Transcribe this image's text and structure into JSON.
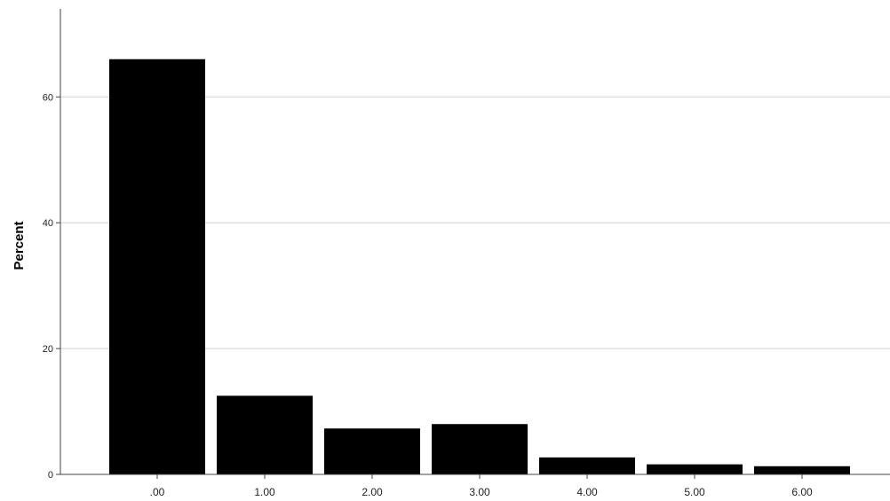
{
  "chart_data": {
    "type": "bar",
    "title": "",
    "xlabel": "",
    "ylabel": "Percent",
    "categories": [
      ".00",
      "1.00",
      "2.00",
      "3.00",
      "4.00",
      "5.00",
      "6.00"
    ],
    "values": [
      66.0,
      12.5,
      7.3,
      8.0,
      2.7,
      1.6,
      1.3
    ],
    "yticks": [
      0,
      20,
      40,
      60
    ],
    "ylim": [
      0,
      74
    ],
    "grid": "horizontal",
    "colors": {
      "bar": "#000000",
      "grid": "#d9d9d9",
      "axis": "#444444"
    }
  }
}
